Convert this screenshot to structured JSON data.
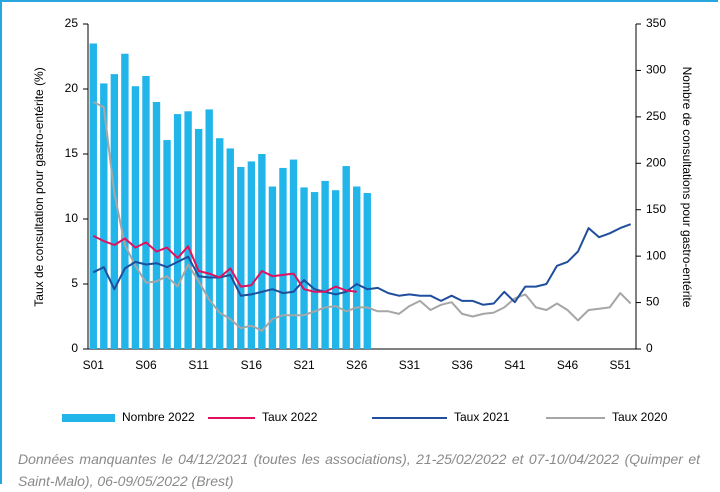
{
  "chart_data": {
    "type": "bar",
    "ylabel": "Taux de consultation pour gastro-entérite (%)",
    "y2label": "Nombre de consultations pour gastro-entérite",
    "note": "Données manquantes le 04/12/2021 (toutes les associations), 21-25/02/2022 et 07-10/04/2022 (Quimper et Saint-Malo), 06-09/05/2022 (Brest)",
    "categories": [
      "S01",
      null,
      null,
      null,
      null,
      "S06",
      null,
      null,
      null,
      null,
      "S11",
      null,
      null,
      null,
      null,
      "S16",
      null,
      null,
      null,
      null,
      "S21",
      null,
      null,
      null,
      null,
      "S26",
      null,
      null,
      null,
      null,
      "S31",
      null,
      null,
      null,
      null,
      "S36",
      null,
      null,
      null,
      null,
      "S41",
      null,
      null,
      null,
      null,
      "S46",
      null,
      null,
      null,
      null,
      "S51",
      null
    ],
    "ylim": [
      0,
      25
    ],
    "yticks": [
      0,
      5,
      10,
      15,
      20,
      25
    ],
    "y2lim": [
      0,
      350
    ],
    "y2ticks": [
      0,
      50,
      100,
      150,
      200,
      250,
      300,
      350
    ],
    "series": [
      {
        "name": "Nombre 2022",
        "type": "bar",
        "axis": "y2",
        "color": "#21b5ea",
        "values": [
          329,
          286,
          296,
          318,
          283,
          294,
          266,
          225,
          253,
          256,
          237,
          258,
          227,
          216,
          196,
          202,
          210,
          175,
          195,
          204,
          174,
          169,
          181,
          171,
          197,
          175,
          168,
          null,
          null,
          null,
          null,
          null,
          null,
          null,
          null,
          null,
          null,
          null,
          null,
          null,
          null,
          null,
          null,
          null,
          null,
          null,
          null,
          null,
          null,
          null,
          null,
          null
        ]
      },
      {
        "name": "Taux 2022",
        "type": "line",
        "color": "#e0115f",
        "values": [
          8.7,
          8.3,
          8.0,
          8.5,
          7.8,
          8.2,
          7.5,
          7.8,
          7.0,
          7.9,
          6.0,
          5.8,
          5.5,
          6.2,
          4.8,
          4.9,
          6.0,
          5.6,
          5.7,
          5.8,
          4.6,
          4.4,
          4.4,
          4.8,
          4.5,
          4.4,
          null,
          null,
          null,
          null,
          null,
          null,
          null,
          null,
          null,
          null,
          null,
          null,
          null,
          null,
          null,
          null,
          null,
          null,
          null,
          null,
          null,
          null,
          null,
          null,
          null,
          null
        ]
      },
      {
        "name": "Taux 2021",
        "type": "line",
        "color": "#1f4e9c",
        "values": [
          5.9,
          6.3,
          4.6,
          6.2,
          6.7,
          6.5,
          6.6,
          6.3,
          6.7,
          7.1,
          5.6,
          5.5,
          5.5,
          5.7,
          4.1,
          4.2,
          4.4,
          4.6,
          4.3,
          4.4,
          5.3,
          4.6,
          4.4,
          4.2,
          4.4,
          5.0,
          4.6,
          4.7,
          4.3,
          4.1,
          4.2,
          4.1,
          4.1,
          3.7,
          4.1,
          3.7,
          3.7,
          3.4,
          3.5,
          4.4,
          3.6,
          4.8,
          4.8,
          5.0,
          6.4,
          6.7,
          7.5,
          9.3,
          8.6,
          8.9,
          9.3,
          9.6
        ]
      },
      {
        "name": "Taux 2020",
        "type": "line",
        "color": "#a6a6a6",
        "values": [
          19.0,
          18.6,
          12.0,
          8.0,
          6.4,
          5.1,
          5.2,
          5.6,
          4.8,
          6.5,
          5.2,
          3.8,
          2.8,
          2.3,
          1.6,
          1.8,
          1.4,
          2.3,
          2.6,
          2.6,
          2.6,
          2.9,
          3.2,
          3.3,
          2.9,
          3.2,
          3.2,
          2.9,
          2.9,
          2.7,
          3.3,
          3.7,
          3.0,
          3.4,
          3.6,
          2.7,
          2.5,
          2.7,
          2.8,
          3.2,
          3.9,
          4.2,
          3.2,
          3.0,
          3.5,
          3.0,
          2.2,
          3.0,
          3.1,
          3.2,
          4.3,
          3.5
        ]
      }
    ]
  }
}
